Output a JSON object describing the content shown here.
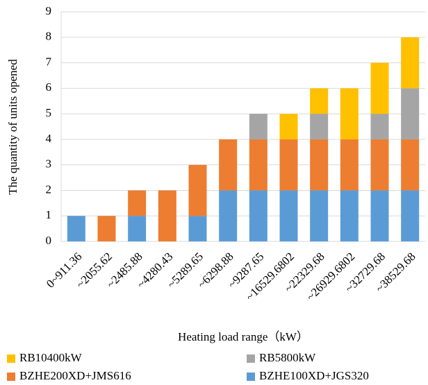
{
  "chart_data": {
    "type": "stacked_bar",
    "categories": [
      "0~911.36",
      "~2055.62",
      "~2485.88",
      "~4280.43",
      "~5289.65",
      "~6298.88",
      "~9287.65",
      "~16529.6802",
      "~22329.68",
      "~26929.6802",
      "~32729.68",
      "~38529.68"
    ],
    "series": [
      {
        "name": "BZHE100XD+JGS320",
        "color": "#5b9bd5",
        "values": [
          1,
          0,
          1,
          0,
          1,
          2,
          2,
          2,
          2,
          2,
          2,
          2
        ]
      },
      {
        "name": "BZHE200XD+JMS616",
        "color": "#ed7d31",
        "values": [
          0,
          1,
          1,
          2,
          2,
          2,
          2,
          2,
          2,
          2,
          2,
          2
        ]
      },
      {
        "name": "RB5800kW",
        "color": "#a5a5a5",
        "values": [
          0,
          0,
          0,
          0,
          0,
          0,
          1,
          0,
          1,
          0,
          1,
          2
        ]
      },
      {
        "name": "RB10400kW",
        "color": "#ffc000",
        "values": [
          0,
          0,
          0,
          0,
          0,
          0,
          0,
          1,
          1,
          2,
          2,
          2
        ]
      }
    ],
    "x_label": "Heating load range（kW）",
    "y_label": "The quantity of units opened",
    "ylim": [
      0,
      9
    ],
    "yticks": [
      0,
      1,
      2,
      3,
      4,
      5,
      6,
      7,
      8,
      9
    ],
    "grid": true
  }
}
